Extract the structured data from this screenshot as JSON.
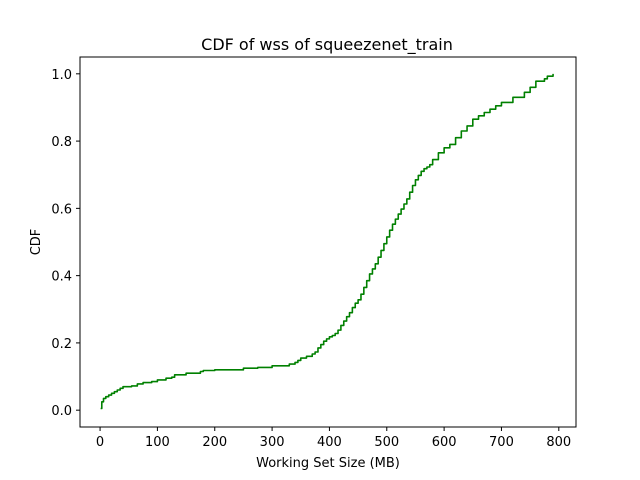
{
  "chart_data": {
    "type": "line",
    "title": "CDF of wss of squeezenet_train",
    "xlabel": "Working Set Size (MB)",
    "ylabel": "CDF",
    "xlim": [
      -35,
      830
    ],
    "ylim": [
      -0.05,
      1.05
    ],
    "xticks": [
      0,
      100,
      200,
      300,
      400,
      500,
      600,
      700,
      800
    ],
    "yticks": [
      0.0,
      0.2,
      0.4,
      0.6,
      0.8,
      1.0
    ],
    "ytick_labels": [
      "0.0",
      "0.2",
      "0.4",
      "0.6",
      "0.8",
      "1.0"
    ],
    "grid": false,
    "series": [
      {
        "color": "#008000",
        "x": [
          1,
          3,
          6,
          10,
          15,
          20,
          25,
          30,
          35,
          40,
          55,
          65,
          75,
          90,
          100,
          115,
          125,
          130,
          150,
          175,
          180,
          200,
          250,
          275,
          300,
          330,
          340,
          345,
          350,
          360,
          370,
          375,
          380,
          385,
          390,
          395,
          400,
          405,
          410,
          415,
          420,
          425,
          430,
          435,
          440,
          445,
          450,
          455,
          460,
          465,
          470,
          475,
          480,
          485,
          490,
          495,
          500,
          505,
          510,
          515,
          520,
          525,
          530,
          535,
          540,
          545,
          550,
          555,
          560,
          565,
          570,
          575,
          580,
          590,
          600,
          610,
          620,
          630,
          640,
          650,
          660,
          670,
          680,
          690,
          700,
          720,
          740,
          750,
          760,
          775,
          780,
          790
        ],
        "y": [
          0.005,
          0.025,
          0.035,
          0.04,
          0.045,
          0.05,
          0.055,
          0.06,
          0.065,
          0.07,
          0.072,
          0.078,
          0.082,
          0.085,
          0.09,
          0.095,
          0.098,
          0.105,
          0.11,
          0.115,
          0.118,
          0.12,
          0.125,
          0.127,
          0.132,
          0.137,
          0.142,
          0.148,
          0.155,
          0.16,
          0.167,
          0.173,
          0.185,
          0.195,
          0.205,
          0.212,
          0.218,
          0.222,
          0.228,
          0.238,
          0.252,
          0.265,
          0.278,
          0.29,
          0.305,
          0.318,
          0.328,
          0.345,
          0.365,
          0.385,
          0.405,
          0.42,
          0.435,
          0.455,
          0.475,
          0.495,
          0.515,
          0.535,
          0.553,
          0.568,
          0.583,
          0.598,
          0.613,
          0.628,
          0.648,
          0.668,
          0.685,
          0.698,
          0.71,
          0.718,
          0.723,
          0.73,
          0.745,
          0.765,
          0.78,
          0.79,
          0.81,
          0.83,
          0.845,
          0.865,
          0.875,
          0.885,
          0.895,
          0.905,
          0.915,
          0.93,
          0.945,
          0.96,
          0.978,
          0.985,
          0.993,
          1.0
        ]
      }
    ]
  }
}
